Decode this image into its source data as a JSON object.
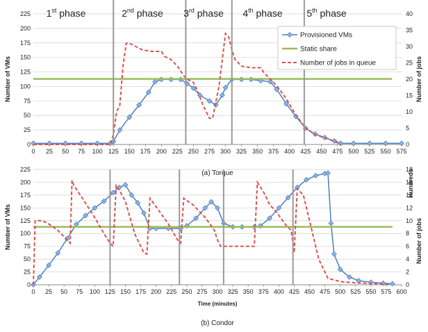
{
  "phases": [
    {
      "num": "1",
      "sup": "st",
      "word": " phase"
    },
    {
      "num": "2",
      "sup": "nd",
      "word": " phase"
    },
    {
      "num": "3",
      "sup": "rd",
      "word": " phase"
    },
    {
      "num": "4",
      "sup": "th",
      "word": " phase"
    },
    {
      "num": "5",
      "sup": "th",
      "word": " phase"
    }
  ],
  "phase_boundaries": [
    125,
    238,
    310,
    423
  ],
  "colors": {
    "provisioned": "#4a7ebb",
    "provisioned_marker": "#8db3e2",
    "static": "#9bbb59",
    "queue": "#d9534f",
    "phase_line": "#999999",
    "grid": "#d0d0d0"
  },
  "chart_data": [
    {
      "type": "line",
      "caption": "(a) Torque",
      "ylabel": "Number of VMs",
      "y2label": "Number of jobs",
      "xlim": [
        0,
        575
      ],
      "ylim": [
        0,
        225
      ],
      "y2lim": [
        0,
        40
      ],
      "xticks": [
        0,
        25,
        50,
        75,
        100,
        125,
        150,
        175,
        200,
        225,
        250,
        275,
        300,
        325,
        350,
        375,
        400,
        425,
        450,
        475,
        500,
        525,
        550,
        575
      ],
      "yticks": [
        0,
        25,
        50,
        75,
        100,
        125,
        150,
        175,
        200,
        225
      ],
      "y2ticks": [
        0,
        5,
        10,
        15,
        20,
        25,
        30,
        35,
        40
      ],
      "legend": {
        "position": "top-right",
        "entries": [
          "Provisioned VMs",
          "Static share",
          "Number of jobs in queue"
        ]
      },
      "series": [
        {
          "name": "Provisioned VMs",
          "axis": "left",
          "style": "line-markers",
          "x": [
            0,
            25,
            50,
            75,
            100,
            120,
            125,
            135,
            150,
            165,
            180,
            190,
            200,
            215,
            230,
            240,
            250,
            260,
            275,
            285,
            295,
            300,
            310,
            325,
            340,
            355,
            370,
            380,
            395,
            410,
            425,
            440,
            455,
            470,
            480,
            500,
            525,
            550,
            575
          ],
          "y": [
            2,
            2,
            2,
            2,
            2,
            2,
            5,
            25,
            47,
            68,
            90,
            108,
            112,
            112,
            112,
            105,
            97,
            85,
            75,
            68,
            85,
            98,
            112,
            112,
            112,
            110,
            108,
            95,
            70,
            48,
            28,
            18,
            12,
            6,
            2,
            2,
            2,
            2,
            2
          ]
        },
        {
          "name": "Static share",
          "axis": "left",
          "style": "solid",
          "x": [
            0,
            560
          ],
          "y": [
            113,
            113
          ]
        },
        {
          "name": "Number of jobs in queue",
          "axis": "right",
          "style": "dashed",
          "x": [
            0,
            25,
            50,
            75,
            100,
            120,
            125,
            130,
            135,
            140,
            145,
            150,
            160,
            170,
            185,
            200,
            205,
            215,
            225,
            235,
            240,
            250,
            255,
            265,
            275,
            280,
            290,
            295,
            300,
            305,
            310,
            315,
            325,
            340,
            355,
            360,
            370,
            380,
            395,
            410,
            425,
            440,
            455,
            470,
            480
          ],
          "y": [
            0,
            0,
            0,
            0,
            0,
            0,
            3,
            10,
            12,
            24,
            31,
            31,
            30,
            29,
            28.5,
            28.5,
            27,
            26,
            24,
            21,
            20,
            19,
            17,
            12,
            8,
            8,
            18,
            26,
            34,
            33,
            29,
            26,
            24,
            23.5,
            23.5,
            22,
            20,
            18,
            14,
            9,
            5,
            3,
            2,
            1,
            0
          ]
        }
      ]
    },
    {
      "type": "line",
      "caption": "(b) Condor",
      "ylabel": "Number of VMs",
      "y2label": "Number of jobs Hundreds",
      "y2label_parts": [
        "Number of jobs",
        "Hundreds"
      ],
      "xlabel": "Time (minutes)",
      "xlim": [
        0,
        600
      ],
      "ylim": [
        0,
        225
      ],
      "y2lim": [
        0,
        18
      ],
      "xticks": [
        0,
        25,
        50,
        75,
        100,
        125,
        150,
        175,
        200,
        225,
        250,
        275,
        300,
        325,
        350,
        375,
        400,
        425,
        450,
        475,
        500,
        525,
        550,
        575,
        600
      ],
      "yticks": [
        0,
        25,
        50,
        75,
        100,
        125,
        150,
        175,
        200,
        225
      ],
      "y2ticks": [
        0,
        2,
        4,
        6,
        8,
        10,
        12,
        14,
        16,
        18
      ],
      "series": [
        {
          "name": "Provisioned VMs",
          "axis": "left",
          "style": "line-markers",
          "x": [
            0,
            10,
            25,
            40,
            55,
            70,
            85,
            100,
            115,
            130,
            140,
            150,
            160,
            170,
            180,
            190,
            200,
            220,
            240,
            250,
            265,
            280,
            290,
            300,
            310,
            325,
            340,
            360,
            370,
            385,
            400,
            415,
            430,
            445,
            460,
            475,
            480,
            485,
            490,
            500,
            515,
            530,
            550,
            570,
            585
          ],
          "y": [
            0,
            15,
            38,
            62,
            90,
            118,
            135,
            150,
            163,
            180,
            190,
            195,
            175,
            160,
            140,
            110,
            110,
            110,
            110,
            115,
            130,
            150,
            162,
            150,
            120,
            113,
            113,
            113,
            115,
            130,
            150,
            170,
            190,
            205,
            213,
            217,
            218,
            120,
            60,
            30,
            15,
            8,
            5,
            3,
            2
          ]
        },
        {
          "name": "Static share",
          "axis": "left",
          "style": "solid",
          "x": [
            0,
            585
          ],
          "y": [
            113,
            113
          ]
        },
        {
          "name": "Number of jobs in queue",
          "axis": "right",
          "style": "dashed",
          "x": [
            0,
            3,
            6,
            15,
            25,
            40,
            50,
            60,
            63,
            66,
            80,
            100,
            115,
            125,
            130,
            135,
            140,
            150,
            165,
            175,
            180,
            185,
            190,
            205,
            220,
            235,
            240,
            245,
            260,
            280,
            295,
            300,
            305,
            315,
            330,
            345,
            355,
            360,
            365,
            375,
            385,
            395,
            410,
            420,
            425,
            430,
            440,
            455,
            465,
            480,
            500,
            525,
            550,
            575,
            580
          ],
          "y": [
            0,
            10,
            10,
            10,
            9.5,
            8.5,
            7.5,
            6.5,
            16.3,
            15.5,
            13.5,
            10.5,
            8,
            6.5,
            6,
            15.5,
            14.8,
            13,
            8,
            6,
            5,
            4.8,
            13.5,
            11.5,
            9.5,
            7,
            6.5,
            13.5,
            12.5,
            10.5,
            8.5,
            7,
            6,
            6,
            6,
            6,
            6,
            6,
            16,
            14.5,
            12.5,
            11.5,
            9.5,
            8.5,
            5,
            15,
            14,
            8,
            4,
            1,
            0.5,
            0.3,
            0.2,
            0.1,
            0
          ]
        }
      ]
    }
  ]
}
